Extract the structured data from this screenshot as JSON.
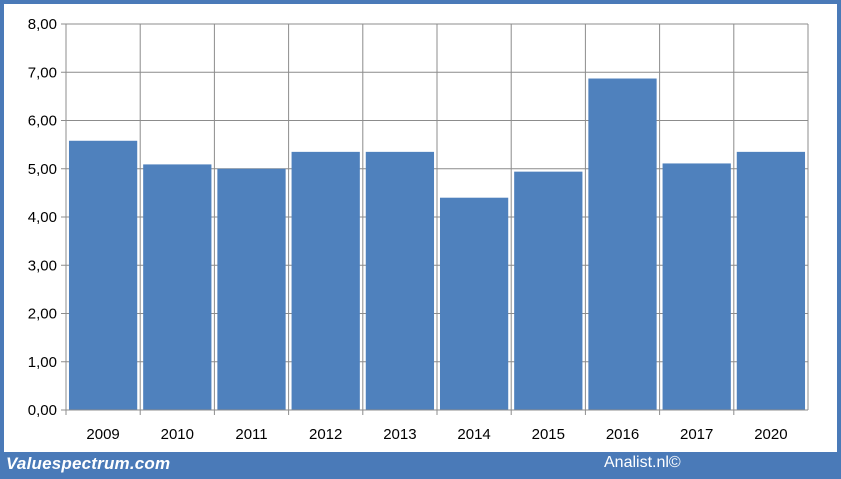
{
  "chart_data": {
    "type": "bar",
    "categories": [
      "2009",
      "2010",
      "2011",
      "2012",
      "2013",
      "2014",
      "2015",
      "2016",
      "2017",
      "2020"
    ],
    "values": [
      5.58,
      5.09,
      5.0,
      5.35,
      5.35,
      4.4,
      4.94,
      6.87,
      5.11,
      5.35
    ],
    "ylim": [
      0,
      8
    ],
    "yticks": [
      "0,00",
      "1,00",
      "2,00",
      "3,00",
      "4,00",
      "5,00",
      "6,00",
      "7,00",
      "8,00"
    ],
    "grid": true,
    "bar_color": "#4f81bd",
    "title": "",
    "xlabel": "",
    "ylabel": ""
  },
  "footer": {
    "left_text": "Valuespectrum.com",
    "right_text": "Analist.nl©",
    "background_color": "#4a7ab8"
  }
}
